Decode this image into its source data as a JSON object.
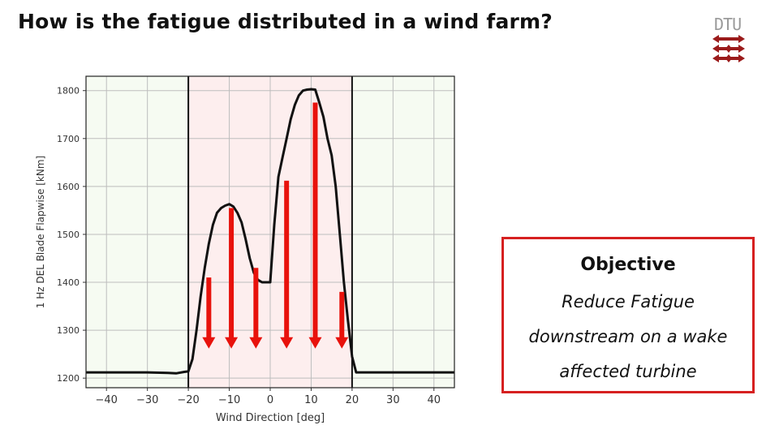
{
  "slide": {
    "title": "How is the fatigue distributed in a wind farm?",
    "logo_text": "DTU"
  },
  "objective": {
    "heading": "Objective",
    "lines": [
      "Reduce Fatigue",
      "downstream on a wake",
      "affected turbine"
    ]
  },
  "colors": {
    "accent_red": "#e8120c",
    "box_border": "#d62020",
    "logo_red": "#9b1b1b",
    "outside_fill": "#f6fbf2",
    "inside_fill": "#fdeeee"
  },
  "chart_data": {
    "type": "line",
    "xlabel": "Wind Direction [deg]",
    "ylabel": "1 Hz DEL Blade Flapwise [kNm]",
    "xlim": [
      -45,
      45
    ],
    "ylim": [
      1180,
      1830
    ],
    "xticks": [
      -40,
      -30,
      -20,
      -10,
      0,
      10,
      20,
      30,
      40
    ],
    "yticks": [
      1200,
      1300,
      1400,
      1500,
      1600,
      1700,
      1800
    ],
    "grid": true,
    "highlight_region": [
      -20,
      20
    ],
    "series": [
      {
        "x": [
          -45,
          -40,
          -35,
          -30,
          -25,
          -23,
          -21,
          -20,
          -19,
          -18,
          -17,
          -16,
          -15,
          -14,
          -13,
          -12,
          -11,
          -10,
          -9,
          -8,
          -7,
          -6,
          -5,
          -4,
          -3,
          -2,
          -1,
          0,
          1,
          2,
          3,
          4,
          5,
          6,
          7,
          8,
          9,
          10,
          11,
          12,
          13,
          14,
          15,
          16,
          17,
          18,
          19,
          20,
          21,
          25,
          30,
          35,
          40,
          45
        ],
        "y": [
          1212,
          1212,
          1212,
          1212,
          1211,
          1210,
          1213,
          1214,
          1240,
          1300,
          1370,
          1430,
          1480,
          1520,
          1545,
          1555,
          1560,
          1563,
          1558,
          1545,
          1525,
          1490,
          1450,
          1420,
          1405,
          1400,
          1400,
          1400,
          1520,
          1620,
          1660,
          1700,
          1740,
          1770,
          1790,
          1800,
          1802,
          1803,
          1802,
          1775,
          1745,
          1700,
          1665,
          1600,
          1500,
          1400,
          1320,
          1245,
          1212,
          1212,
          1212,
          1212,
          1212,
          1212
        ]
      }
    ],
    "arrows": [
      {
        "x": -15,
        "from": 1410,
        "to": 1265
      },
      {
        "x": -9.5,
        "from": 1555,
        "to": 1265
      },
      {
        "x": -3.5,
        "from": 1430,
        "to": 1265
      },
      {
        "x": 4,
        "from": 1612,
        "to": 1265
      },
      {
        "x": 11,
        "from": 1775,
        "to": 1265
      },
      {
        "x": 17.5,
        "from": 1380,
        "to": 1265
      }
    ]
  }
}
